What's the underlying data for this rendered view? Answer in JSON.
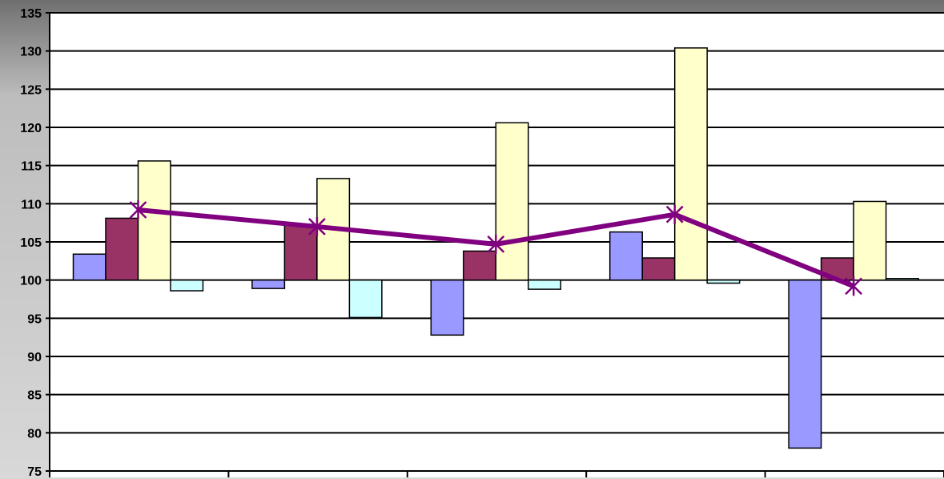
{
  "chart_data": {
    "type": "bar",
    "title": "",
    "xlabel": "",
    "ylabel": "",
    "ylim": [
      75,
      135
    ],
    "yticks": [
      75,
      80,
      85,
      90,
      95,
      100,
      105,
      110,
      115,
      120,
      125,
      130,
      135
    ],
    "baseline": 100,
    "grid": true,
    "categories": [
      "",
      "",
      "",
      "",
      ""
    ],
    "series": [
      {
        "type": "bar",
        "color": "#9999ff",
        "values": [
          103.4,
          98.9,
          92.8,
          106.3,
          78.0
        ]
      },
      {
        "type": "bar",
        "color": "#993366",
        "values": [
          108.1,
          107.3,
          103.8,
          102.9,
          102.9
        ]
      },
      {
        "type": "bar",
        "color": "#ffffcc",
        "values": [
          115.6,
          113.3,
          120.6,
          130.4,
          110.3
        ]
      },
      {
        "type": "bar",
        "color": "#ccffff",
        "values": [
          98.6,
          95.1,
          98.8,
          99.6,
          100.2
        ]
      },
      {
        "type": "line",
        "color": "#800080",
        "marker": "star",
        "values": [
          109.2,
          107.0,
          104.7,
          108.6,
          99.2
        ]
      }
    ]
  }
}
